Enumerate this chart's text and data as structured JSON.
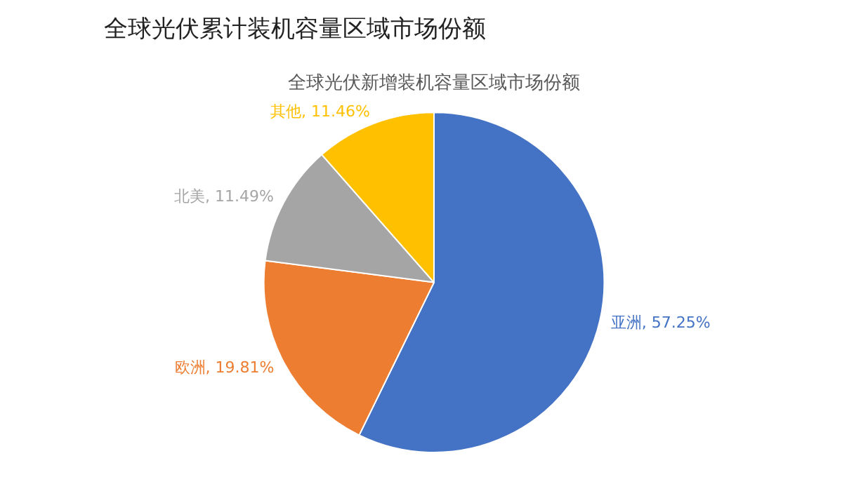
{
  "chart_data": {
    "type": "pie",
    "title": "全球光伏累计装机容量区域市场份额",
    "subtitle": "全球光伏新增装机容量区域市场份额",
    "categories": [
      "亚洲",
      "欧洲",
      "北美",
      "其他"
    ],
    "values": [
      57.25,
      19.81,
      11.49,
      11.46
    ],
    "colors": [
      "#4472c4",
      "#ed7d31",
      "#a5a5a5",
      "#ffc000"
    ],
    "value_labels": [
      ", 57.25%",
      ", 19.81%",
      ", 11.49%",
      ", 11.46%"
    ],
    "legend": false
  }
}
